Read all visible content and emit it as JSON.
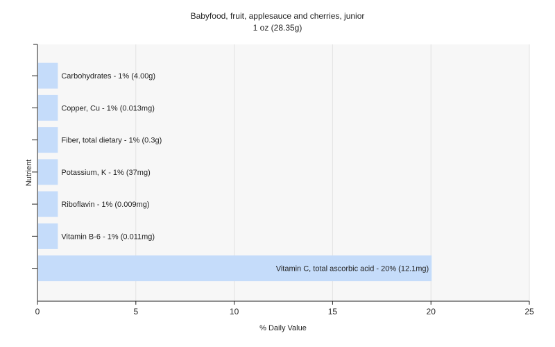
{
  "chart_data": {
    "type": "bar",
    "orientation": "horizontal",
    "title": "Babyfood, fruit, applesauce and cherries, junior",
    "subtitle": "1 oz (28.35g)",
    "xlabel": "% Daily Value",
    "ylabel": "Nutrient",
    "xlim": [
      0,
      25
    ],
    "xticks": [
      0,
      5,
      10,
      15,
      20,
      25
    ],
    "grid": true,
    "bar_color": "#c5dcfa",
    "categories": [
      "Carbohydrates",
      "Copper, Cu",
      "Fiber, total dietary",
      "Potassium, K",
      "Riboflavin",
      "Vitamin B-6",
      "Vitamin C, total ascorbic acid"
    ],
    "values": [
      1,
      1,
      1,
      1,
      1,
      1,
      20
    ],
    "labels": [
      "Carbohydrates - 1% (4.00g)",
      "Copper, Cu - 1% (0.013mg)",
      "Fiber, total dietary - 1% (0.3g)",
      "Potassium, K - 1% (37mg)",
      "Riboflavin - 1% (0.009mg)",
      "Vitamin B-6 - 1% (0.011mg)",
      "Vitamin C, total ascorbic acid - 20% (12.1mg)"
    ]
  }
}
